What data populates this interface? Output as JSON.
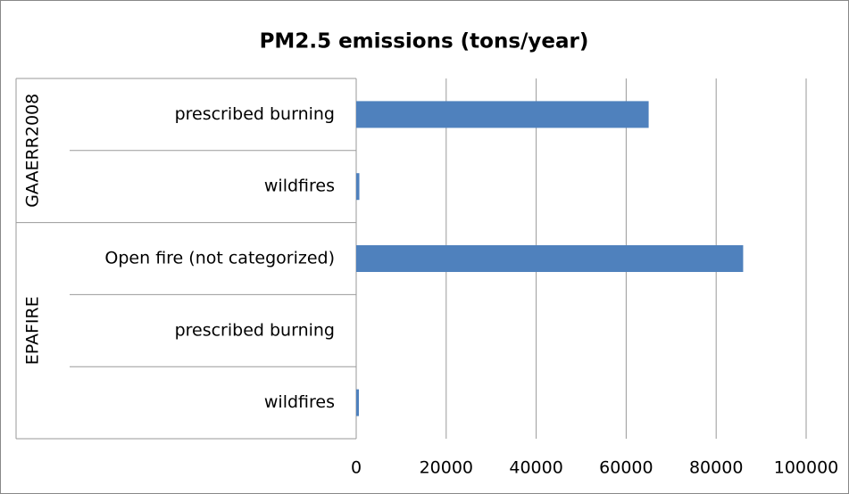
{
  "chart_data": {
    "type": "bar",
    "orientation": "horizontal",
    "title": "PM2.5 emissions (tons/year)",
    "groups": [
      {
        "name": "GAAERR2008",
        "categories": [
          "prescribed burning",
          "wildfires"
        ],
        "values": [
          65000,
          700
        ]
      },
      {
        "name": "EPAFIRE",
        "categories": [
          "Open fire (not categorized)",
          "prescribed burning",
          "wildfires"
        ],
        "values": [
          86000,
          0,
          600
        ]
      }
    ],
    "color": "#4f81bd",
    "xlim": [
      0,
      100000
    ],
    "xticks": [
      0,
      20000,
      40000,
      60000,
      80000,
      100000
    ],
    "grid": true
  }
}
